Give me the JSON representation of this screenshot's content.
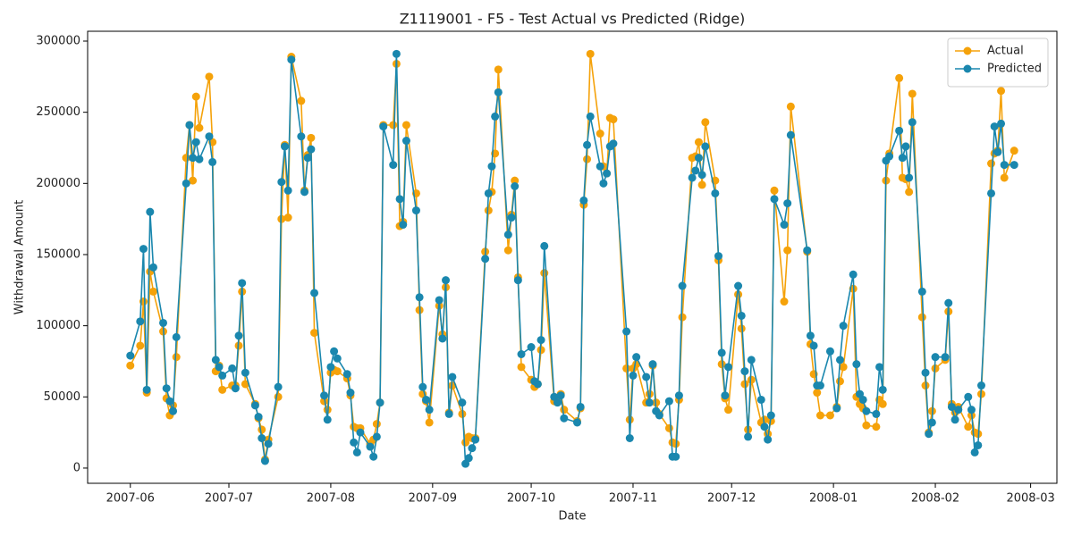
{
  "chart_data": {
    "type": "line",
    "title": "Z1119001 - F5 - Test Actual vs Predicted (Ridge)",
    "xlabel": "Date",
    "ylabel": "Withdrawal Amount",
    "x": [
      0,
      3,
      4,
      5,
      6,
      7,
      10,
      11,
      12,
      13,
      14,
      17,
      18,
      19,
      20,
      21,
      24,
      25,
      26,
      27,
      28,
      31,
      32,
      33,
      34,
      35,
      38,
      39,
      40,
      41,
      42,
      45,
      46,
      47,
      48,
      49,
      52,
      53,
      54,
      55,
      56,
      59,
      60,
      61,
      62,
      63,
      66,
      67,
      68,
      69,
      70,
      73,
      74,
      75,
      76,
      77,
      80,
      81,
      82,
      83,
      84,
      87,
      88,
      89,
      90,
      91,
      94,
      95,
      96,
      97,
      98,
      101,
      102,
      103,
      104,
      105,
      108,
      109,
      110,
      111,
      112,
      115,
      116,
      117,
      118,
      119,
      122,
      123,
      124,
      125,
      126,
      129,
      130,
      131,
      132,
      136,
      137,
      138,
      139,
      140,
      143,
      144,
      145,
      146,
      147,
      151,
      152,
      153,
      154,
      157,
      158,
      159,
      160,
      161,
      164,
      165,
      166,
      167,
      168,
      171,
      172,
      173,
      174,
      175,
      178,
      179,
      180,
      181,
      182,
      185,
      186,
      187,
      188,
      189,
      192,
      193,
      194,
      195,
      196,
      199,
      200,
      201,
      206,
      207,
      208,
      209,
      210,
      213,
      215,
      216,
      217,
      220,
      221,
      222,
      223,
      224,
      227,
      228,
      229,
      230,
      231,
      234,
      235,
      236,
      237,
      238,
      241,
      242,
      243,
      244,
      245,
      248,
      249,
      250,
      251,
      252,
      255,
      256,
      257,
      258,
      259,
      262,
      263,
      264,
      265,
      266,
      269
    ],
    "series": [
      {
        "name": "Actual",
        "color": "#f5a20a",
        "values": [
          72000,
          86000,
          117000,
          53000,
          138000,
          124000,
          96000,
          49000,
          37000,
          44000,
          78000,
          218000,
          241000,
          202000,
          261000,
          239000,
          275000,
          229000,
          68000,
          72000,
          55000,
          58000,
          58000,
          86000,
          124000,
          59000,
          45000,
          35000,
          27000,
          6000,
          20000,
          50000,
          175000,
          227000,
          176000,
          289000,
          258000,
          195000,
          220000,
          232000,
          95000,
          47000,
          41000,
          67000,
          69000,
          68000,
          63000,
          51000,
          29000,
          28000,
          28000,
          17000,
          20000,
          31000,
          46000,
          241000,
          241000,
          284000,
          170000,
          173000,
          241000,
          193000,
          111000,
          52000,
          47000,
          32000,
          114000,
          94000,
          127000,
          39000,
          58000,
          38000,
          18000,
          22000,
          21000,
          21000,
          152000,
          181000,
          194000,
          221000,
          280000,
          153000,
          178000,
          202000,
          134000,
          71000,
          62000,
          57000,
          59000,
          83000,
          137000,
          47000,
          47000,
          52000,
          41000,
          33000,
          42000,
          185000,
          217000,
          291000,
          235000,
          212000,
          207000,
          246000,
          245000,
          70000,
          34000,
          70000,
          73000,
          46000,
          52000,
          72000,
          46000,
          38000,
          28000,
          18000,
          17000,
          48000,
          106000,
          218000,
          219000,
          229000,
          199000,
          243000,
          202000,
          146000,
          73000,
          49000,
          41000,
          122000,
          98000,
          59000,
          27000,
          62000,
          32000,
          34000,
          24000,
          33000,
          195000,
          117000,
          153000,
          254000,
          152000,
          87000,
          66000,
          53000,
          37000,
          37000,
          43000,
          61000,
          71000,
          126000,
          50000,
          45000,
          42000,
          30000,
          29000,
          48000,
          45000,
          202000,
          221000,
          274000,
          204000,
          203000,
          194000,
          263000,
          106000,
          58000,
          25000,
          40000,
          70000,
          76000,
          110000,
          45000,
          39000,
          43000,
          29000,
          37000,
          25000,
          24000,
          52000,
          214000,
          221000,
          223000,
          265000,
          204000,
          223000
        ]
      },
      {
        "name": "Predicted",
        "color": "#1a87ae",
        "values": [
          79000,
          103000,
          154000,
          55000,
          180000,
          141000,
          102000,
          56000,
          47000,
          40000,
          92000,
          200000,
          241000,
          218000,
          229000,
          217000,
          233000,
          215000,
          76000,
          71000,
          65000,
          70000,
          56000,
          93000,
          130000,
          67000,
          44000,
          36000,
          21000,
          5000,
          17000,
          57000,
          201000,
          226000,
          195000,
          287000,
          233000,
          194000,
          218000,
          224000,
          123000,
          51000,
          34000,
          71000,
          82000,
          77000,
          66000,
          53000,
          18000,
          11000,
          25000,
          15000,
          8000,
          22000,
          46000,
          240000,
          213000,
          291000,
          189000,
          171000,
          230000,
          181000,
          120000,
          57000,
          48000,
          41000,
          118000,
          91000,
          132000,
          38000,
          64000,
          46000,
          3000,
          7000,
          14000,
          20000,
          147000,
          193000,
          212000,
          247000,
          264000,
          164000,
          176000,
          198000,
          132000,
          80000,
          85000,
          61000,
          59000,
          90000,
          156000,
          50000,
          46000,
          51000,
          35000,
          32000,
          43000,
          188000,
          227000,
          247000,
          212000,
          200000,
          207000,
          226000,
          228000,
          96000,
          21000,
          65000,
          78000,
          64000,
          46000,
          73000,
          40000,
          37000,
          47000,
          8000,
          8000,
          51000,
          128000,
          204000,
          209000,
          218000,
          206000,
          226000,
          193000,
          149000,
          81000,
          51000,
          71000,
          128000,
          107000,
          68000,
          22000,
          76000,
          48000,
          29000,
          20000,
          37000,
          189000,
          171000,
          186000,
          234000,
          153000,
          93000,
          86000,
          58000,
          58000,
          82000,
          42000,
          76000,
          100000,
          136000,
          73000,
          52000,
          48000,
          40000,
          38000,
          71000,
          55000,
          216000,
          219000,
          237000,
          218000,
          226000,
          204000,
          243000,
          124000,
          67000,
          24000,
          32000,
          78000,
          78000,
          116000,
          43000,
          34000,
          41000,
          50000,
          41000,
          11000,
          16000,
          58000,
          193000,
          240000,
          222000,
          242000,
          213000,
          213000
        ]
      }
    ],
    "xlim": [
      -13,
      282
    ],
    "xticks": [
      {
        "value": 0,
        "label": "2007-06"
      },
      {
        "value": 30,
        "label": "2007-07"
      },
      {
        "value": 61,
        "label": "2007-08"
      },
      {
        "value": 92,
        "label": "2007-09"
      },
      {
        "value": 122,
        "label": "2007-10"
      },
      {
        "value": 153,
        "label": "2007-11"
      },
      {
        "value": 183,
        "label": "2007-12"
      },
      {
        "value": 214,
        "label": "2008-01"
      },
      {
        "value": 245,
        "label": "2008-02"
      },
      {
        "value": 274,
        "label": "2008-03"
      }
    ],
    "ylim": [
      -10700,
      306900
    ],
    "yticks": [
      0,
      50000,
      100000,
      150000,
      200000,
      250000,
      300000
    ],
    "legend": "upper right"
  }
}
